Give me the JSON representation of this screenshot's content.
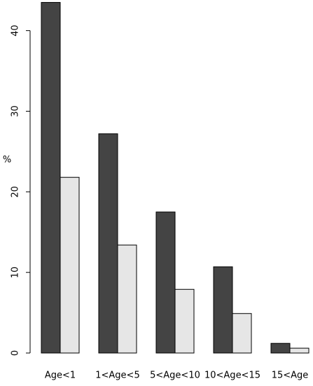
{
  "chart_data": {
    "type": "bar",
    "y_label": "%",
    "categories": [
      "Age<1",
      "1<Age<5",
      "5<Age<10",
      "10<Age<15",
      "15<Age"
    ],
    "series": [
      {
        "color": "#444444",
        "values": [
          43.5,
          27.2,
          17.5,
          10.7,
          1.2
        ]
      },
      {
        "color": "#e6e6e6",
        "values": [
          21.8,
          13.4,
          7.9,
          4.9,
          0.6
        ]
      }
    ],
    "ylim": [
      0,
      43.8
    ],
    "yticks": [
      0,
      10,
      20,
      30,
      40
    ]
  }
}
